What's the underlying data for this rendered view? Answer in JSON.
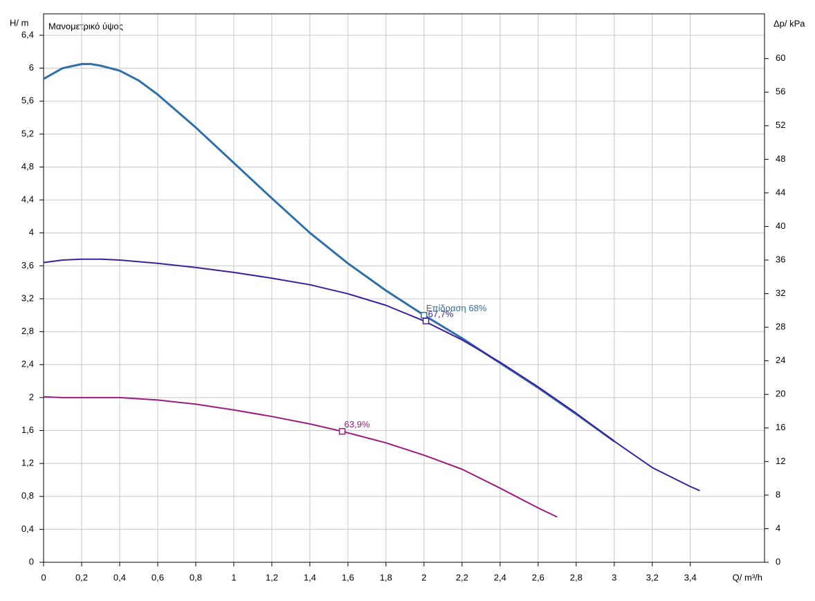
{
  "chart_data": {
    "type": "line",
    "title": "Μανομετρικό ύψος",
    "y_label": "H/ m",
    "y2_label": "Δp/ kPa",
    "x_label": "Q/ m³/h",
    "xlim": [
      0,
      3.79
    ],
    "ylim": [
      0,
      6.66
    ],
    "y2lim": [
      0,
      65.33
    ],
    "xticks": [
      0,
      {
        "value": 0.2,
        "label": "0,2"
      },
      {
        "value": 0.4,
        "label": "0,4"
      },
      {
        "value": 0.6,
        "label": "0,6"
      },
      {
        "value": 0.8,
        "label": "0,8"
      },
      1,
      {
        "value": 1.2,
        "label": "1,2"
      },
      {
        "value": 1.4,
        "label": "1,4"
      },
      {
        "value": 1.6,
        "label": "1,6"
      },
      {
        "value": 1.8,
        "label": "1,8"
      },
      2,
      {
        "value": 2.2,
        "label": "2,2"
      },
      {
        "value": 2.4,
        "label": "2,4"
      },
      {
        "value": 2.6,
        "label": "2,6"
      },
      {
        "value": 2.8,
        "label": "2,8"
      },
      3,
      {
        "value": 3.2,
        "label": "3,2"
      },
      {
        "value": 3.4,
        "label": "3,4"
      }
    ],
    "yticks": [
      0,
      {
        "value": 0.4,
        "label": "0,4"
      },
      {
        "value": 0.8,
        "label": "0,8"
      },
      {
        "value": 1.2,
        "label": "1,2"
      },
      {
        "value": 1.6,
        "label": "1,6"
      },
      2,
      {
        "value": 2.4,
        "label": "2,4"
      },
      {
        "value": 2.8,
        "label": "2,8"
      },
      {
        "value": 3.2,
        "label": "3,2"
      },
      {
        "value": 3.6,
        "label": "3,6"
      },
      4,
      {
        "value": 4.4,
        "label": "4,4"
      },
      {
        "value": 4.8,
        "label": "4,8"
      },
      {
        "value": 5.2,
        "label": "5,2"
      },
      {
        "value": 5.6,
        "label": "5,6"
      },
      6,
      {
        "value": 6.4,
        "label": "6,4"
      }
    ],
    "y2ticks": [
      0,
      4,
      8,
      12,
      16,
      20,
      24,
      28,
      32,
      36,
      40,
      44,
      48,
      52,
      56,
      60
    ],
    "grid": true,
    "series": [
      {
        "color": "#2f6fa7",
        "width": 3,
        "x": [
          0,
          0.1,
          0.2,
          0.25,
          0.3,
          0.4,
          0.5,
          0.6,
          0.8,
          1.0,
          1.2,
          1.4,
          1.6,
          1.8,
          2.0,
          2.2,
          2.4,
          2.6,
          2.8,
          3.0
        ],
        "values": [
          5.87,
          6.0,
          6.05,
          6.05,
          6.03,
          5.97,
          5.85,
          5.68,
          5.28,
          4.85,
          4.42,
          4.0,
          3.63,
          3.3,
          3.0,
          2.72,
          2.42,
          2.12,
          1.8,
          1.47
        ],
        "marker": {
          "x": 2.0,
          "y": 3.0,
          "label": "Επίδραση 68%"
        }
      },
      {
        "color": "#3b1e9c",
        "width": 2,
        "x": [
          0,
          0.1,
          0.2,
          0.3,
          0.4,
          0.6,
          0.8,
          1.0,
          1.2,
          1.4,
          1.6,
          1.8,
          2.0,
          2.2,
          2.4,
          2.6,
          2.8,
          3.0,
          3.2,
          3.4,
          3.45
        ],
        "values": [
          3.64,
          3.67,
          3.68,
          3.68,
          3.67,
          3.63,
          3.58,
          3.52,
          3.45,
          3.37,
          3.26,
          3.12,
          2.93,
          2.7,
          2.43,
          2.13,
          1.81,
          1.47,
          1.15,
          0.92,
          0.87
        ],
        "marker": {
          "x": 2.01,
          "y": 2.93,
          "label": "67,7%"
        }
      },
      {
        "color": "#9c1a7e",
        "width": 2,
        "x": [
          0,
          0.1,
          0.4,
          0.6,
          0.8,
          1.0,
          1.2,
          1.4,
          1.57,
          1.8,
          2.0,
          2.2,
          2.4,
          2.6,
          2.7
        ],
        "values": [
          2.01,
          2.0,
          2.0,
          1.97,
          1.92,
          1.85,
          1.77,
          1.68,
          1.59,
          1.45,
          1.3,
          1.13,
          0.9,
          0.66,
          0.55
        ],
        "marker": {
          "x": 1.57,
          "y": 1.59,
          "label": "63,9%"
        }
      }
    ]
  }
}
